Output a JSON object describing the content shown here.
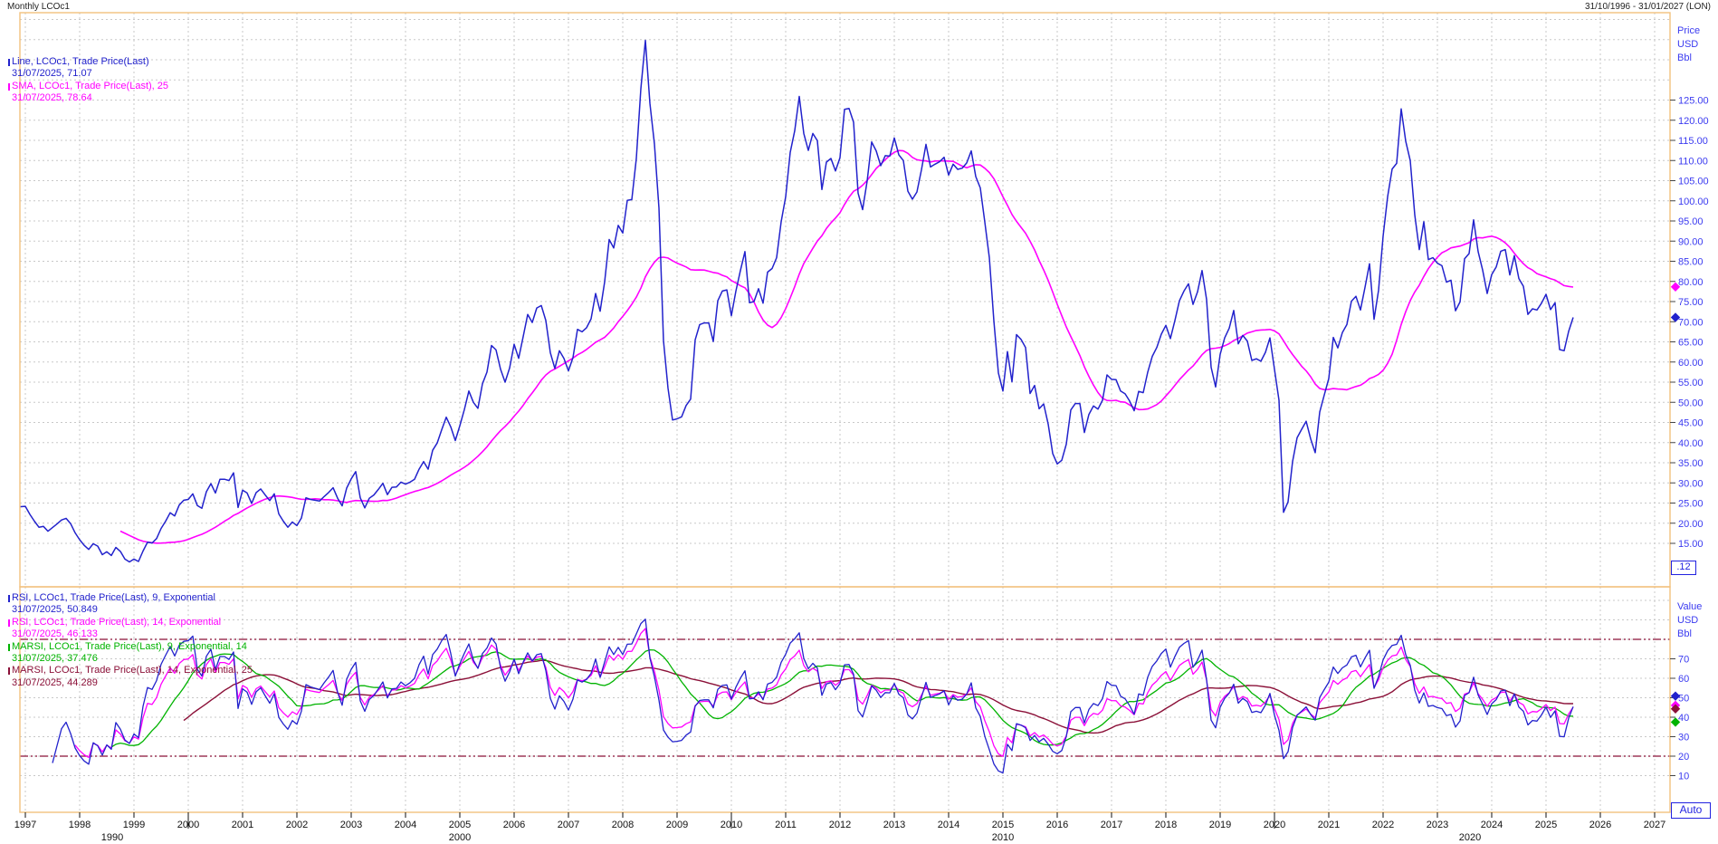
{
  "title_bar": {
    "title": "Monthly LCOc1",
    "date_range": "31/10/1996 - 31/01/2027 (LON)"
  },
  "main_panel": {
    "legend": [
      {
        "label": "Line, LCOc1, Trade Price(Last)",
        "value": "31/07/2025, 71.07",
        "color": "#2222cc"
      },
      {
        "label": "SMA, LCOc1, Trade Price(Last),  25",
        "value": "31/07/2025, 78.64",
        "color": "#ff00ff"
      }
    ],
    "axis": {
      "header": [
        "Price",
        "USD",
        "Bbl"
      ],
      "interval_box": ".12"
    }
  },
  "rsi_panel": {
    "legend": [
      {
        "label": "RSI, LCOc1, Trade Price(Last),  9, Exponential",
        "value": "31/07/2025, 50.849",
        "color": "#2222cc"
      },
      {
        "label": "RSI, LCOc1, Trade Price(Last),  14, Exponential",
        "value": "31/07/2025, 46.133",
        "color": "#ff00ff"
      },
      {
        "label": "MARSI, LCOc1, Trade Price(Last),  9, Exponential, 14",
        "value": "31/07/2025, 37.476",
        "color": "#00b300"
      },
      {
        "label": "MARSI, LCOc1, Trade Price(Last),  14, Exponential, 25",
        "value": "31/07/2025, 44.289",
        "color": "#8b1038"
      }
    ],
    "axis": {
      "header": [
        "Value",
        "USD",
        "Bbl"
      ]
    },
    "auto_button": "Auto"
  },
  "colors": {
    "border": "#f3c17e",
    "grid": "#c8c8c8",
    "axis_text": "#3a3af0",
    "price_line": "#2222cc",
    "sma_line": "#ff00ff",
    "rsi9": "#2222cc",
    "rsi14": "#ff00ff",
    "marsi914": "#00b300",
    "marsi1425": "#8b1038",
    "band": "#8b1038",
    "x_label": "#111111"
  },
  "chart_data": {
    "type": "line",
    "title": "Monthly LCOc1",
    "instrument": "LCOc1",
    "interval": "Monthly",
    "x_start": 1996.75,
    "x_end": 2027.0833,
    "step_years": 0.0833333,
    "price_series": {
      "name": "Trade Price(Last)",
      "color": "#2222cc",
      "last_date": "31/07/2025",
      "last": 71.07,
      "values": [
        24.6,
        23.9,
        24.1,
        24.2,
        22.2,
        20.5,
        19.0,
        19.2,
        18.0,
        18.9,
        19.8,
        20.8,
        21.2,
        19.9,
        17.6,
        15.9,
        14.5,
        13.5,
        14.9,
        14.3,
        12.2,
        12.9,
        12.0,
        14.0,
        13.0,
        11.1,
        10.4,
        11.1,
        10.5,
        13.1,
        15.3,
        15.1,
        16.2,
        18.7,
        20.5,
        22.6,
        21.8,
        24.5,
        25.7,
        25.9,
        27.3,
        24.4,
        23.7,
        27.8,
        29.8,
        27.5,
        30.9,
        30.9,
        30.6,
        32.5,
        23.9,
        28.2,
        27.5,
        24.9,
        27.6,
        28.5,
        27.0,
        25.6,
        27.3,
        22.3,
        20.5,
        19.0,
        20.3,
        19.4,
        21.3,
        26.3,
        25.9,
        25.7,
        25.5,
        26.6,
        27.6,
        28.8,
        26.2,
        24.3,
        28.7,
        31.0,
        32.8,
        26.3,
        23.8,
        26.2,
        27.0,
        28.4,
        29.9,
        27.1,
        28.9,
        29.0,
        30.2,
        29.7,
        30.2,
        30.9,
        33.4,
        35.3,
        33.4,
        38.1,
        39.9,
        43.2,
        46.3,
        43.9,
        40.5,
        44.2,
        48.2,
        52.8,
        50.0,
        48.5,
        54.6,
        57.5,
        64.1,
        63.0,
        58.2,
        55.0,
        58.5,
        64.4,
        60.9,
        66.3,
        71.8,
        69.8,
        73.4,
        74.0,
        70.3,
        62.3,
        58.4,
        62.8,
        60.9,
        57.8,
        61.1,
        68.1,
        67.5,
        68.5,
        70.7,
        77.0,
        72.6,
        79.9,
        90.4,
        88.3,
        93.9,
        92.0,
        100.1,
        100.3,
        110.5,
        127.8,
        139.8,
        124.2,
        114.1,
        98.2,
        65.3,
        53.5,
        45.6,
        45.9,
        46.4,
        49.2,
        50.8,
        65.5,
        69.3,
        69.7,
        69.7,
        65.1,
        75.2,
        77.6,
        77.9,
        71.5,
        77.6,
        82.7,
        87.4,
        74.7,
        75.0,
        78.2,
        74.6,
        82.3,
        83.2,
        85.9,
        94.8,
        101.0,
        112.0,
        117.4,
        125.9,
        116.7,
        112.5,
        116.7,
        114.9,
        102.8,
        109.6,
        110.5,
        107.4,
        110.7,
        122.7,
        122.9,
        119.5,
        101.9,
        97.8,
        104.9,
        114.6,
        112.4,
        108.7,
        111.2,
        111.1,
        115.6,
        111.4,
        110.0,
        102.4,
        100.4,
        102.2,
        107.7,
        114.0,
        108.4,
        109.1,
        109.7,
        110.8,
        106.4,
        109.1,
        107.8,
        108.1,
        109.4,
        112.4,
        106.0,
        103.2,
        94.7,
        85.9,
        70.2,
        57.3,
        52.8,
        62.6,
        55.1,
        66.8,
        65.6,
        63.6,
        52.2,
        54.2,
        48.4,
        49.6,
        44.6,
        37.3,
        34.7,
        35.6,
        39.6,
        48.1,
        49.7,
        49.7,
        42.5,
        47.0,
        49.1,
        48.3,
        50.5,
        56.8,
        55.7,
        55.6,
        52.8,
        52.1,
        50.3,
        47.9,
        52.7,
        52.4,
        57.5,
        61.4,
        63.6,
        66.9,
        69.1,
        65.8,
        70.3,
        75.2,
        77.6,
        79.4,
        74.3,
        77.4,
        82.7,
        75.5,
        58.7,
        53.8,
        61.9,
        66.0,
        68.4,
        72.8,
        64.5,
        66.6,
        65.2,
        60.4,
        60.8,
        60.2,
        62.4,
        66.0,
        58.2,
        50.5,
        22.7,
        25.3,
        35.3,
        41.2,
        43.3,
        45.3,
        40.9,
        37.5,
        47.6,
        51.8,
        55.9,
        66.1,
        63.5,
        67.3,
        69.3,
        75.1,
        76.3,
        72.9,
        78.5,
        84.4,
        70.6,
        77.8,
        91.2,
        101.0,
        107.9,
        109.3,
        122.8,
        114.8,
        110.0,
        96.5,
        87.9,
        94.8,
        85.4,
        85.9,
        84.5,
        83.9,
        79.8,
        80.3,
        72.7,
        74.9,
        85.6,
        86.9,
        95.3,
        87.4,
        82.8,
        77.0,
        81.7,
        83.6,
        87.5,
        87.9,
        81.6,
        86.4,
        80.7,
        78.8,
        71.8,
        73.2,
        72.9,
        74.6,
        76.8,
        73.0,
        74.7,
        63.1,
        62.8,
        67.6,
        71.07
      ]
    },
    "overlays": [
      {
        "name": "SMA 25",
        "type": "sma",
        "period": 25,
        "color": "#ff00ff",
        "last": 78.64
      }
    ],
    "studies": [
      {
        "name": "RSI 9 Exponential",
        "type": "rsi",
        "period": 9,
        "color": "#2222cc",
        "last": 50.849
      },
      {
        "name": "RSI 14 Exponential",
        "type": "rsi",
        "period": 14,
        "color": "#ff00ff",
        "last": 46.133
      },
      {
        "name": "MARSI 9 Exponential 14",
        "type": "sma_of_rsi",
        "rsi_period": 9,
        "period": 14,
        "color": "#00b300",
        "last": 37.476
      },
      {
        "name": "MARSI 14 Exponential 25",
        "type": "sma_of_rsi",
        "rsi_period": 14,
        "period": 25,
        "color": "#8b1038",
        "last": 44.289
      }
    ],
    "price_axis": {
      "title": [
        "Price",
        "USD",
        "Bbl"
      ],
      "ticks": [
        125,
        120,
        115,
        110,
        105,
        100,
        95,
        90,
        85,
        80,
        75,
        70,
        65,
        60,
        55,
        50,
        45,
        40,
        35,
        30,
        25,
        20,
        15
      ],
      "grid": [
        145,
        140,
        135,
        130,
        125,
        120,
        115,
        110,
        105,
        100,
        95,
        90,
        85,
        80,
        75,
        70,
        65,
        60,
        55,
        50,
        45,
        40,
        35,
        30,
        25,
        20,
        15
      ],
      "tick_format": "0.00"
    },
    "value_axis": {
      "title": [
        "Value",
        "USD",
        "Bbl"
      ],
      "ticks": [
        70,
        60,
        50,
        40,
        30,
        20,
        10
      ],
      "grid": [
        100,
        90,
        80,
        70,
        60,
        50,
        40,
        30,
        20,
        10
      ],
      "bands": [
        80,
        20
      ],
      "band_color": "#8b1038"
    },
    "x_axis": {
      "years": [
        1997,
        1998,
        1999,
        2000,
        2001,
        2002,
        2003,
        2004,
        2005,
        2006,
        2007,
        2008,
        2009,
        2010,
        2011,
        2012,
        2013,
        2014,
        2015,
        2016,
        2017,
        2018,
        2019,
        2020,
        2021,
        2022,
        2023,
        2024,
        2025,
        2026,
        2027
      ],
      "decade_long_tick_years": [
        2000,
        2010,
        2020
      ],
      "decade_labels": [
        {
          "label": "1990",
          "center_year": 1998.6
        },
        {
          "label": "2000",
          "center_year": 2005.0
        },
        {
          "label": "2010",
          "center_year": 2015.0
        },
        {
          "label": "2020",
          "center_year": 2023.6
        }
      ]
    },
    "axis_markers": {
      "price": [
        {
          "value": 78.64,
          "color": "#ff00ff"
        },
        {
          "value": 71.07,
          "color": "#2222cc"
        }
      ],
      "value": [
        {
          "value": 50.849,
          "color": "#2222cc"
        },
        {
          "value": 46.133,
          "color": "#ff00ff"
        },
        {
          "value": 44.289,
          "color": "#8b1038"
        },
        {
          "value": 37.476,
          "color": "#00b300"
        }
      ]
    }
  }
}
